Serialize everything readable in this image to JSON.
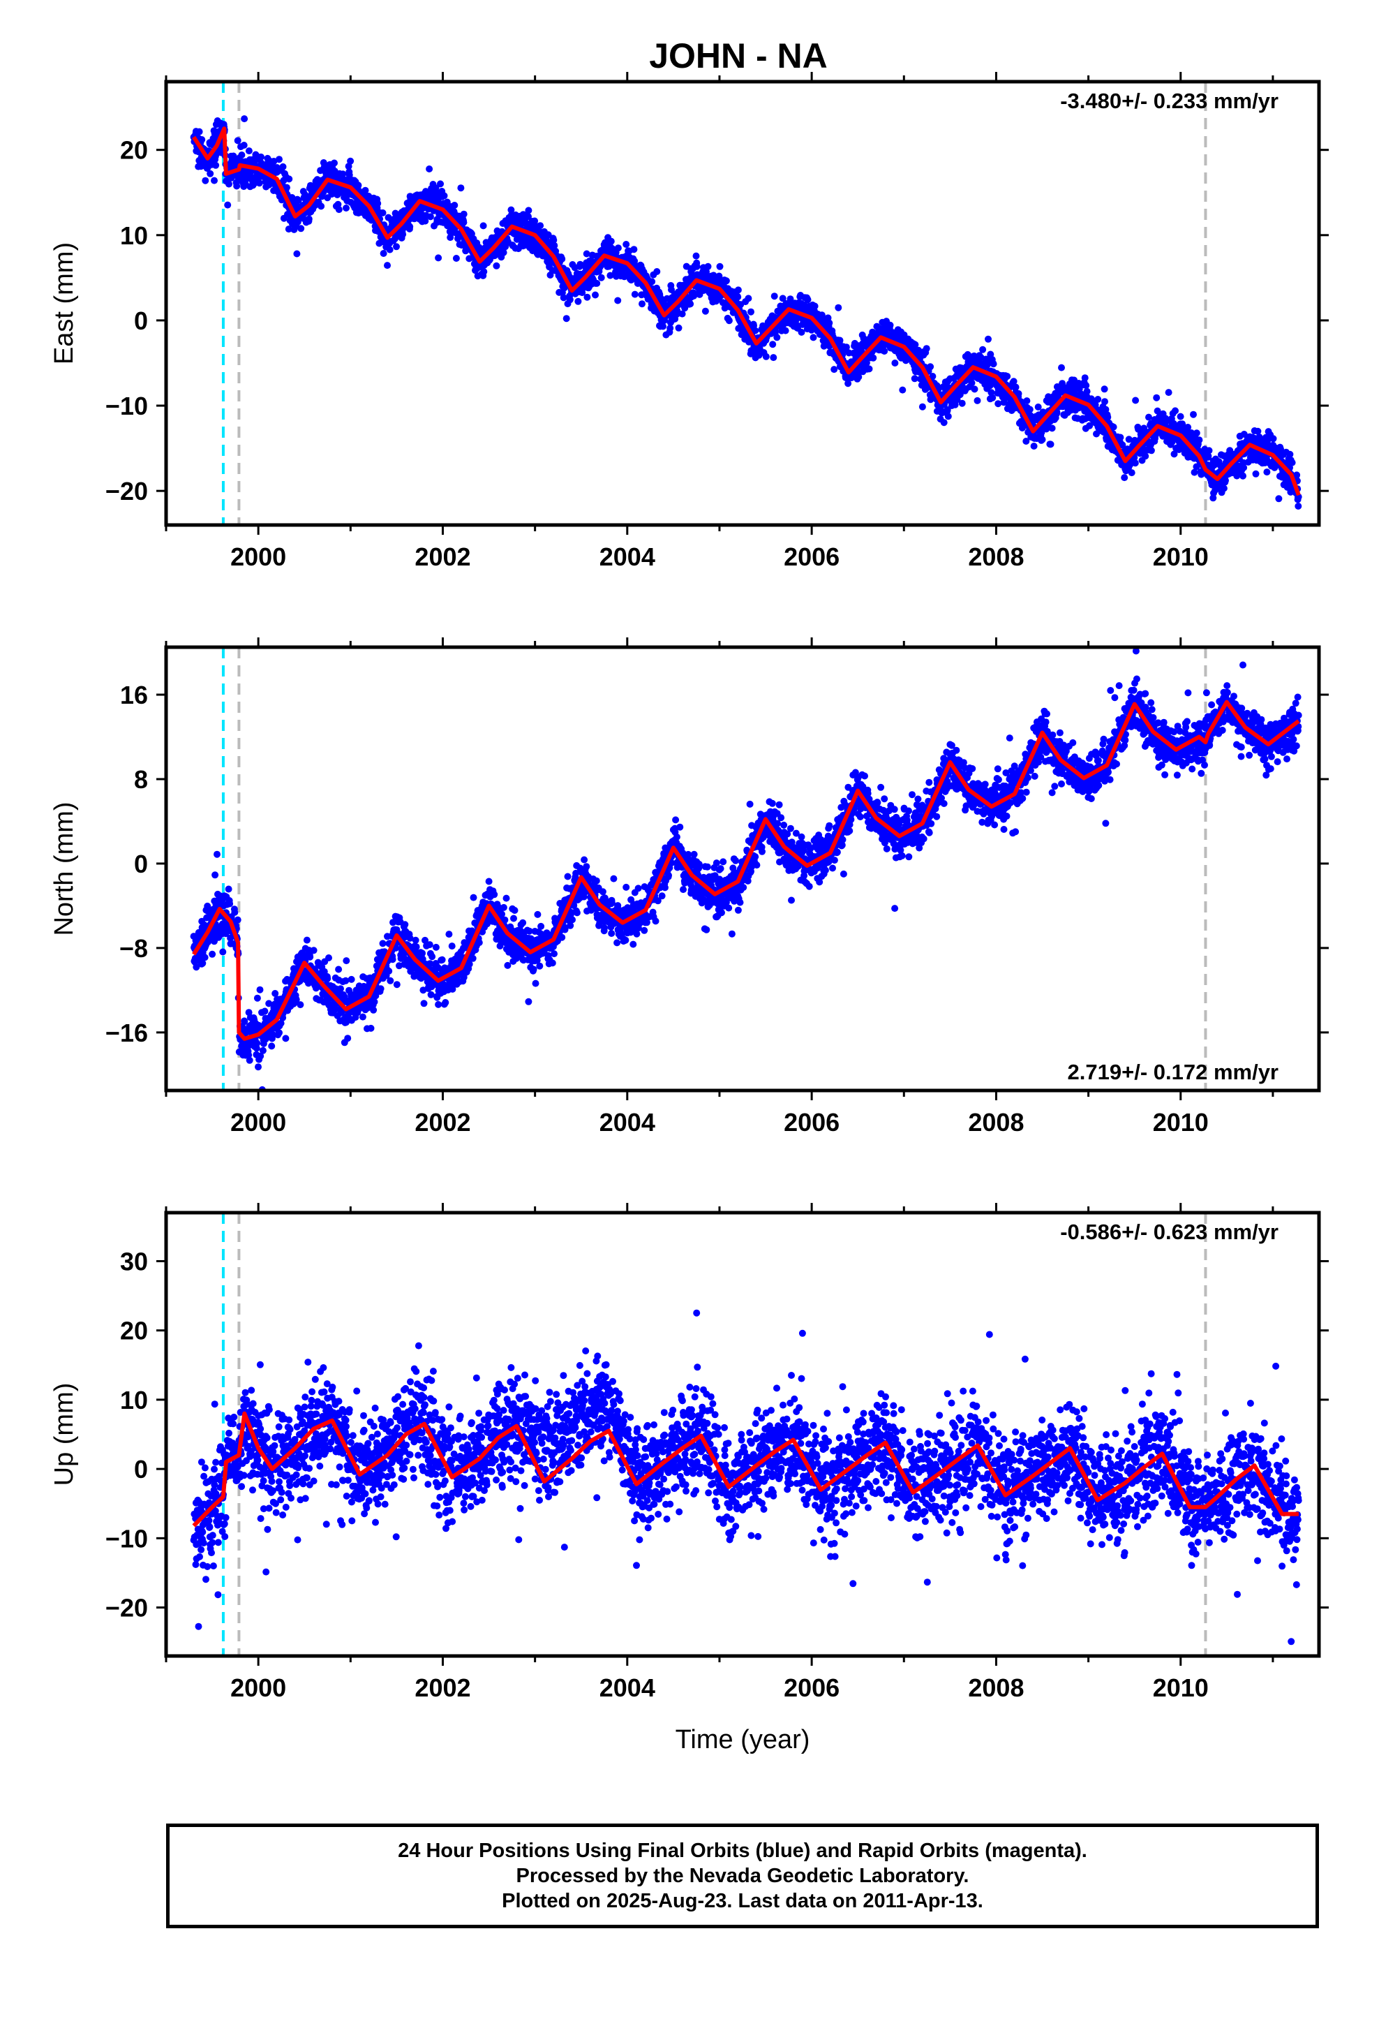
{
  "title": "JOHN - NA",
  "caption": [
    "24 Hour Positions Using Final Orbits (blue) and Rapid Orbits (magenta).",
    "Processed by the Nevada Geodetic Laboratory.",
    "Plotted on 2025-Aug-23. Last data on 2011-Apr-13."
  ],
  "colors": {
    "final_orbits": "#0000ff",
    "model": "#ff0000",
    "event_cyan": "#00e5ff",
    "event_gray": "#bbbbbb"
  },
  "chart_data": [
    {
      "type": "scatter",
      "name": "east",
      "ylabel": "East (mm)",
      "xlabel": "",
      "rate_text": "-3.480+/- 0.233 mm/yr",
      "rate_pos": "top-right",
      "xlim": [
        1999.0,
        2011.5
      ],
      "ylim": [
        -24,
        28
      ],
      "x_ticks": [
        2000,
        2002,
        2004,
        2006,
        2008,
        2010
      ],
      "y_ticks": [
        -20,
        -10,
        0,
        10,
        20
      ],
      "y_tick_labels": [
        "−20",
        "−10",
        "0",
        "10",
        "20"
      ],
      "event_lines": [
        {
          "x": 1999.62,
          "color": "cyan"
        },
        {
          "x": 1999.79,
          "color": "gray"
        },
        {
          "x": 2010.27,
          "color": "gray"
        }
      ],
      "model": {
        "x": [
          1999.3,
          1999.45,
          1999.55,
          1999.63,
          1999.65,
          1999.79,
          1999.8,
          2000.0,
          2000.2,
          2000.4,
          2000.55,
          2000.75,
          2001.0,
          2001.2,
          2001.4,
          2001.55,
          2001.75,
          2002.0,
          2002.2,
          2002.4,
          2002.55,
          2002.75,
          2003.0,
          2003.2,
          2003.4,
          2003.55,
          2003.75,
          2004.0,
          2004.2,
          2004.4,
          2004.55,
          2004.75,
          2005.0,
          2005.2,
          2005.4,
          2005.55,
          2005.75,
          2006.0,
          2006.2,
          2006.4,
          2006.55,
          2006.75,
          2007.0,
          2007.2,
          2007.4,
          2007.55,
          2007.75,
          2008.0,
          2008.2,
          2008.4,
          2008.55,
          2008.75,
          2009.0,
          2009.2,
          2009.4,
          2009.55,
          2009.75,
          2010.0,
          2010.2,
          2010.27,
          2010.4,
          2010.55,
          2010.75,
          2011.0,
          2011.2,
          2011.28
        ],
        "y": [
          21.5,
          19.0,
          20.5,
          22.5,
          17.2,
          17.7,
          18.2,
          17.8,
          16.6,
          12.2,
          13.5,
          16.5,
          15.6,
          13.4,
          9.7,
          11.3,
          14.0,
          13.0,
          10.7,
          6.9,
          8.5,
          11.0,
          10.0,
          7.5,
          3.5,
          5.1,
          7.6,
          6.7,
          4.4,
          0.6,
          2.2,
          4.7,
          3.7,
          1.2,
          -2.7,
          -1.0,
          1.3,
          0.3,
          -2.1,
          -6.1,
          -4.3,
          -2.0,
          -3.1,
          -5.5,
          -9.6,
          -7.8,
          -5.5,
          -6.6,
          -9.0,
          -13.0,
          -11.2,
          -8.8,
          -9.9,
          -12.4,
          -16.5,
          -14.7,
          -12.4,
          -13.5,
          -15.9,
          -17.5,
          -18.6,
          -16.8,
          -14.6,
          -15.8,
          -18.1,
          -20.5
        ]
      }
    },
    {
      "type": "scatter",
      "name": "north",
      "ylabel": "North (mm)",
      "xlabel": "",
      "rate_text": "2.719+/- 0.172 mm/yr",
      "rate_pos": "bottom-right",
      "xlim": [
        1999.0,
        2011.5
      ],
      "ylim": [
        -21.5,
        20.5
      ],
      "x_ticks": [
        2000,
        2002,
        2004,
        2006,
        2008,
        2010
      ],
      "y_ticks": [
        -16,
        -8,
        0,
        8,
        16
      ],
      "y_tick_labels": [
        "−16",
        "−8",
        "0",
        "8",
        "16"
      ],
      "event_lines": [
        {
          "x": 1999.62,
          "color": "cyan"
        },
        {
          "x": 1999.79,
          "color": "gray"
        },
        {
          "x": 2010.27,
          "color": "gray"
        }
      ],
      "model": {
        "x": [
          1999.3,
          1999.45,
          1999.58,
          1999.7,
          1999.78,
          1999.79,
          1999.85,
          2000.0,
          2000.2,
          2000.5,
          2000.7,
          2000.95,
          2001.2,
          2001.5,
          2001.7,
          2001.95,
          2002.2,
          2002.5,
          2002.7,
          2002.95,
          2003.2,
          2003.5,
          2003.7,
          2003.95,
          2004.2,
          2004.5,
          2004.7,
          2004.95,
          2005.2,
          2005.5,
          2005.7,
          2005.95,
          2006.2,
          2006.5,
          2006.7,
          2006.95,
          2007.2,
          2007.5,
          2007.7,
          2007.95,
          2008.2,
          2008.5,
          2008.7,
          2008.95,
          2009.2,
          2009.5,
          2009.7,
          2009.95,
          2010.2,
          2010.27,
          2010.3,
          2010.5,
          2010.7,
          2010.95,
          2011.28
        ],
        "y": [
          -8.6,
          -6.5,
          -4.3,
          -5.5,
          -7.5,
          -16.0,
          -16.6,
          -16.2,
          -14.8,
          -9.4,
          -11.5,
          -13.8,
          -12.6,
          -6.8,
          -9.1,
          -11.1,
          -9.9,
          -4.0,
          -6.6,
          -8.4,
          -7.2,
          -1.3,
          -3.9,
          -5.6,
          -4.4,
          1.5,
          -1.1,
          -2.9,
          -1.7,
          4.2,
          1.6,
          -0.2,
          1.0,
          6.9,
          4.3,
          2.6,
          3.8,
          9.6,
          7.0,
          5.4,
          6.6,
          12.4,
          9.8,
          8.1,
          9.3,
          15.1,
          12.5,
          10.8,
          12.0,
          11.5,
          12.3,
          15.3,
          12.9,
          11.3,
          13.5
        ]
      }
    },
    {
      "type": "scatter",
      "name": "up",
      "ylabel": "Up (mm)",
      "xlabel": "Time (year)",
      "rate_text": "-0.586+/- 0.623 mm/yr",
      "rate_pos": "top-right",
      "xlim": [
        1999.0,
        2011.5
      ],
      "ylim": [
        -27,
        37
      ],
      "x_ticks": [
        2000,
        2002,
        2004,
        2006,
        2008,
        2010
      ],
      "y_ticks": [
        -20,
        -10,
        0,
        10,
        20,
        30
      ],
      "y_tick_labels": [
        "−20",
        "−10",
        "0",
        "10",
        "20",
        "30"
      ],
      "event_lines": [
        {
          "x": 1999.62,
          "color": "cyan"
        },
        {
          "x": 1999.79,
          "color": "gray"
        },
        {
          "x": 2010.27,
          "color": "gray"
        }
      ],
      "model": {
        "x": [
          1999.3,
          1999.5,
          1999.62,
          1999.65,
          1999.79,
          1999.85,
          2000.0,
          2000.15,
          2000.4,
          2000.6,
          2000.8,
          2001.1,
          2001.4,
          2001.6,
          2001.8,
          2002.1,
          2002.4,
          2002.6,
          2002.8,
          2003.1,
          2003.4,
          2003.6,
          2003.8,
          2004.1,
          2004.4,
          2004.6,
          2004.8,
          2005.1,
          2005.4,
          2005.6,
          2005.8,
          2006.1,
          2006.4,
          2006.6,
          2006.8,
          2007.1,
          2007.4,
          2007.6,
          2007.8,
          2008.1,
          2008.4,
          2008.6,
          2008.8,
          2009.1,
          2009.4,
          2009.6,
          2009.8,
          2010.1,
          2010.27,
          2010.4,
          2010.6,
          2010.8,
          2011.1,
          2011.28
        ],
        "y": [
          -8.2,
          -5.5,
          -4.0,
          1.0,
          2.0,
          8.0,
          3.0,
          0.0,
          3.0,
          5.8,
          7.0,
          -0.8,
          2.0,
          5.0,
          6.5,
          -1.2,
          1.5,
          4.5,
          6.2,
          -1.8,
          1.5,
          4.0,
          5.5,
          -2.2,
          1.0,
          3.0,
          4.8,
          -2.6,
          0.5,
          2.5,
          4.2,
          -3.0,
          0.0,
          2.0,
          3.8,
          -3.4,
          -0.5,
          1.5,
          3.4,
          -3.8,
          -1.0,
          1.0,
          3.0,
          -4.5,
          -2.0,
          0.2,
          2.2,
          -5.5,
          -5.5,
          -4.0,
          -1.5,
          0.5,
          -6.5,
          -6.5
        ]
      }
    }
  ]
}
